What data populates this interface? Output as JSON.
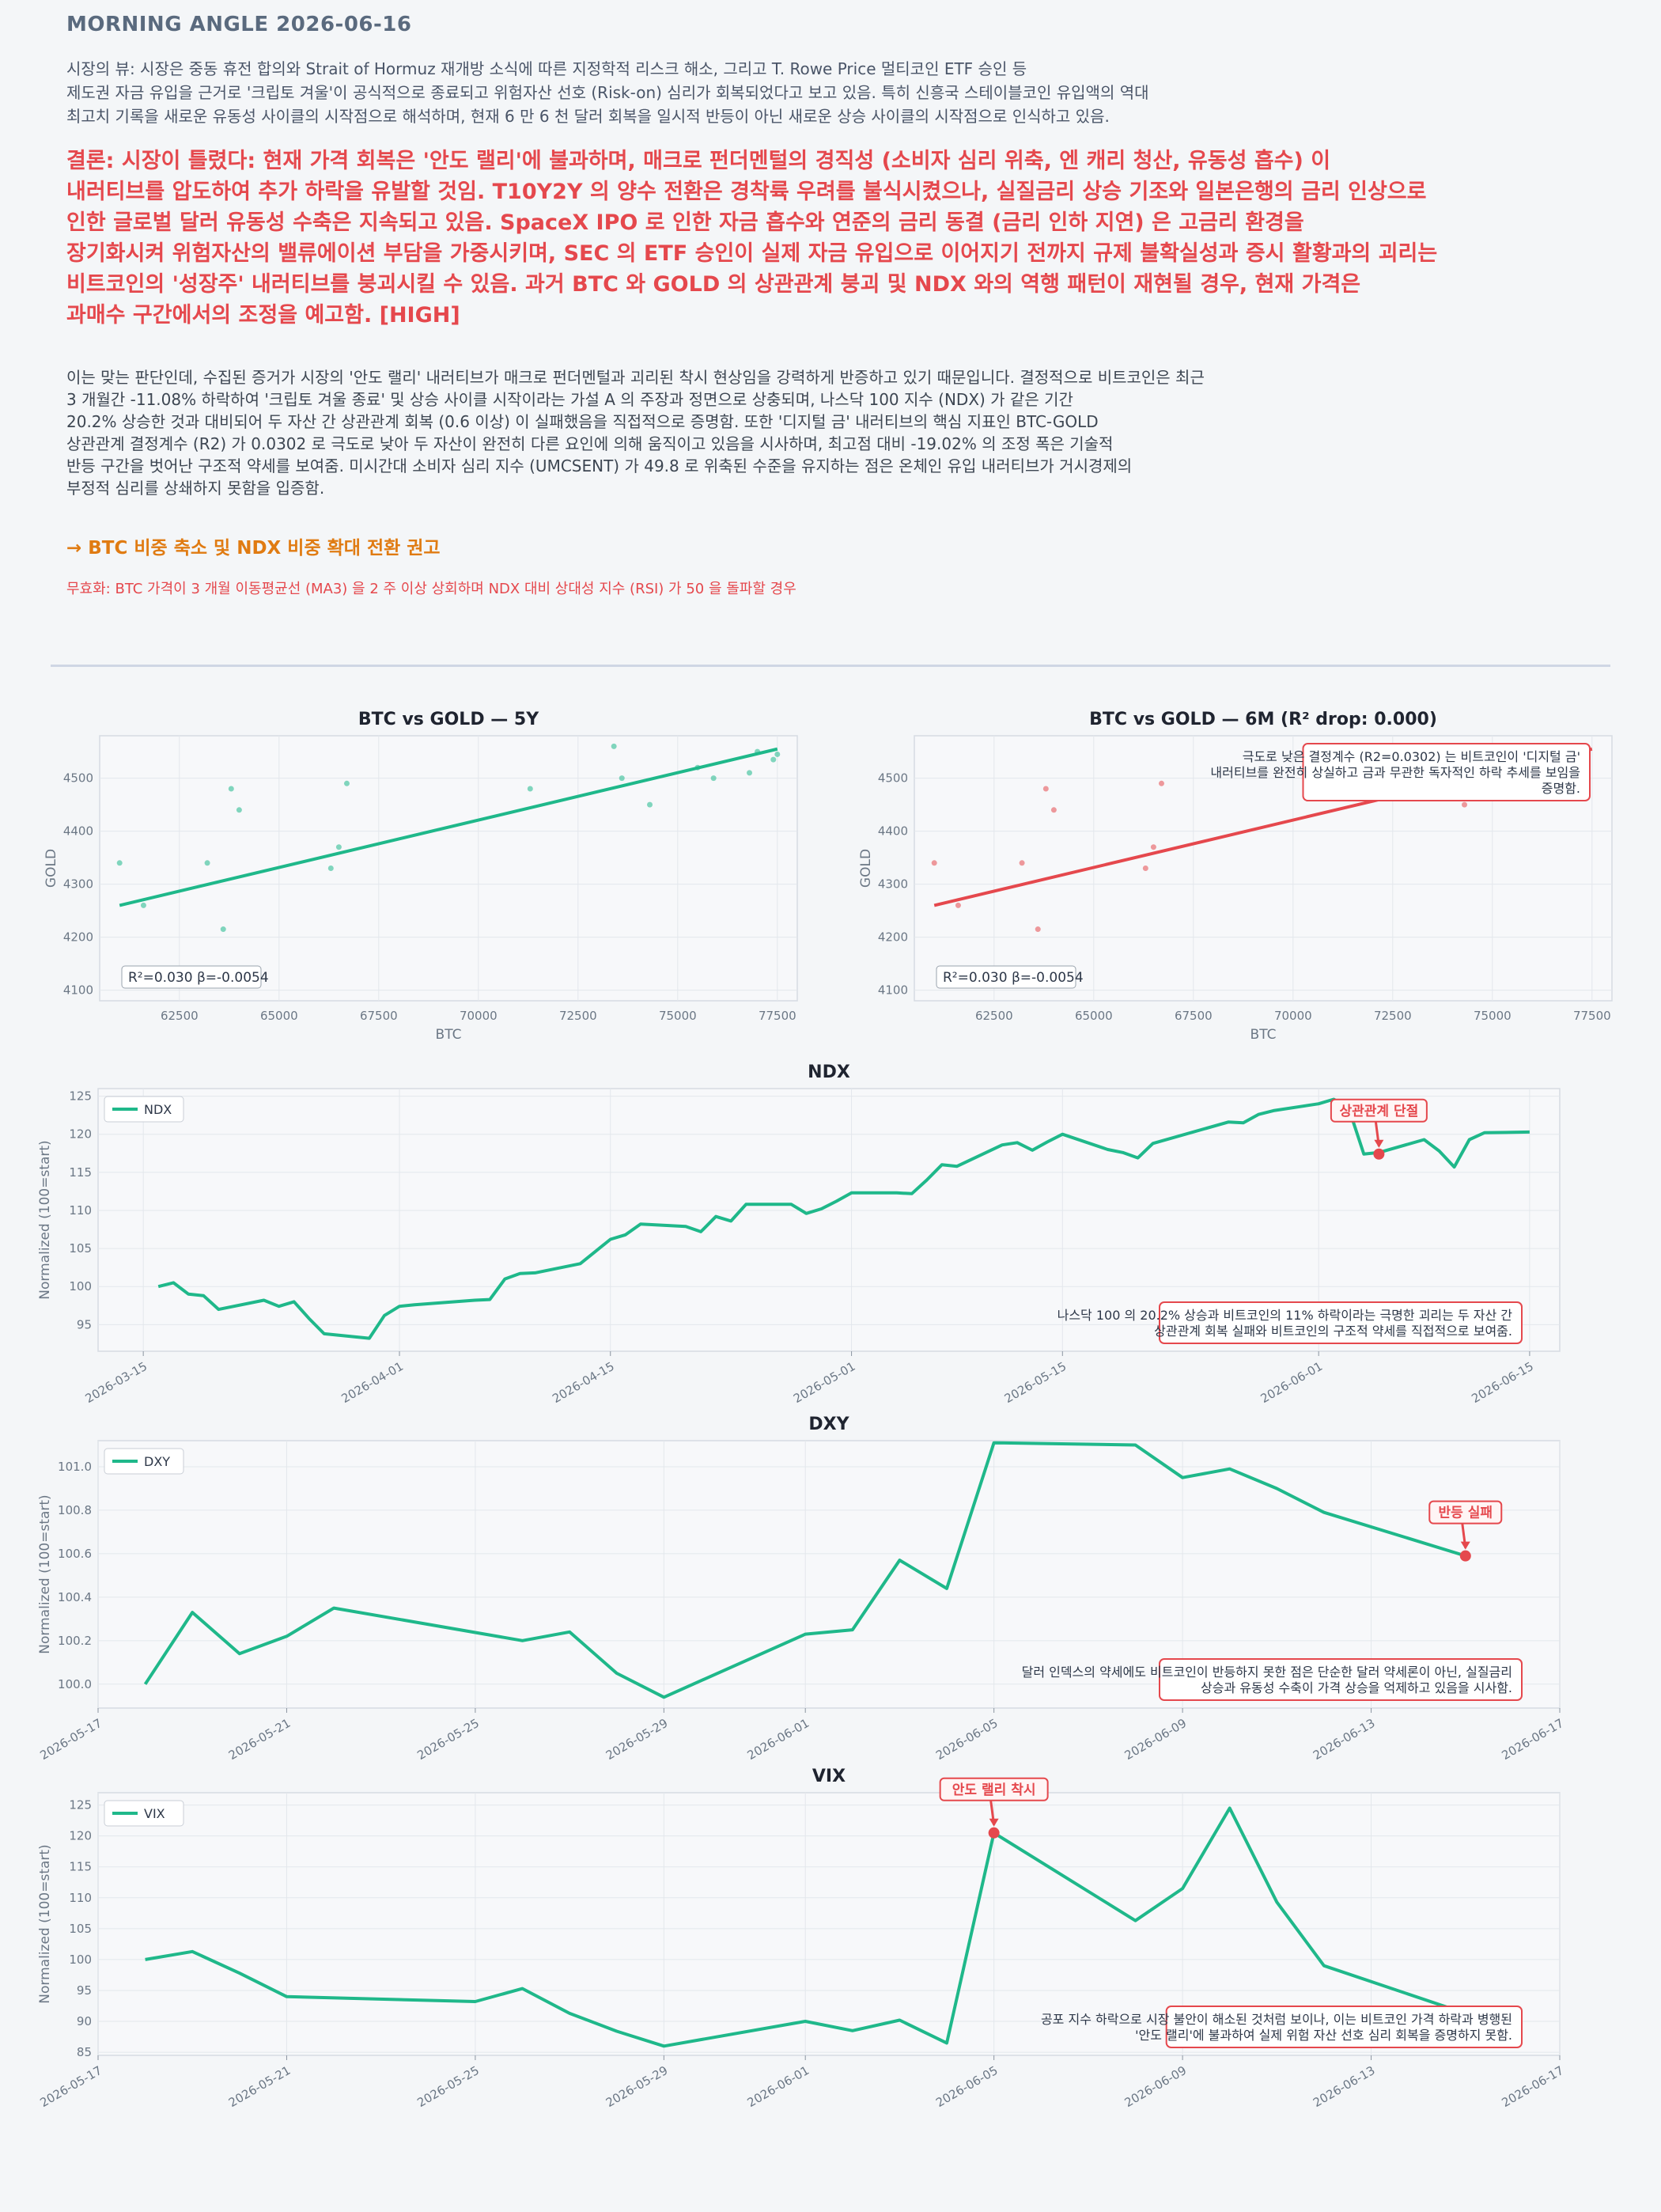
{
  "header": "MORNING ANGLE  2026-06-16",
  "market_view": [
    "시장의 뷰: 시장은 중동 휴전 합의와 Strait of Hormuz 재개방 소식에 따른 지정학적 리스크 해소, 그리고 T. Rowe Price 멀티코인 ETF 승인 등",
    "제도권 자금 유입을 근거로 '크립토 겨울'이 공식적으로 종료되고 위험자산 선호 (Risk-on) 심리가 회복되었다고 보고 있음. 특히 신흥국 스테이블코인 유입액의 역대",
    "최고치 기록을 새로운 유동성 사이클의 시작점으로 해석하며, 현재 6 만 6 천 달러 회복을 일시적 반등이 아닌 새로운 상승 사이클의 시작점으로 인식하고 있음."
  ],
  "conclusion": [
    "결론: 시장이 틀렸다: 현재 가격 회복은 '안도 랠리'에 불과하며, 매크로 펀더멘털의 경직성 (소비자 심리 위축, 엔 캐리 청산, 유동성 흡수) 이",
    "내러티브를 압도하여 추가 하락을 유발할 것임. T10Y2Y 의 양수 전환은 경착륙 우려를 불식시켰으나, 실질금리 상승 기조와 일본은행의 금리 인상으로",
    "인한 글로벌 달러 유동성 수축은 지속되고 있음. SpaceX IPO 로 인한 자금 흡수와 연준의 금리 동결 (금리 인하 지연) 은 고금리 환경을",
    "장기화시켜 위험자산의 밸류에이션 부담을 가중시키며, SEC 의 ETF 승인이 실제 자금 유입으로 이어지기 전까지 규제 불확실성과 증시 활황과의 괴리는",
    "비트코인의 '성장주' 내러티브를 붕괴시킬 수 있음. 과거 BTC 와 GOLD 의 상관관계 붕괴 및 NDX 와의 역행 패턴이 재현될 경우, 현재 가격은",
    "과매수 구간에서의 조정을 예고함.  [HIGH]"
  ],
  "evidence": [
    "이는 맞는 판단인데, 수집된 증거가 시장의 '안도 랠리' 내러티브가 매크로 펀더멘털과 괴리된 착시 현상임을 강력하게 반증하고 있기 때문입니다. 결정적으로 비트코인은 최근",
    "3 개월간 -11.08% 하락하여 '크립토 겨울 종료' 및 상승 사이클 시작이라는 가설 A 의 주장과 정면으로 상충되며, 나스닥 100 지수 (NDX) 가 같은 기간",
    "20.2% 상승한 것과 대비되어 두 자산 간 상관관계 회복 (0.6 이상) 이 실패했음을 직접적으로 증명함. 또한 '디지털 금' 내러티브의 핵심 지표인 BTC-GOLD",
    "상관관계 결정계수 (R2) 가 0.0302 로 극도로 낮아 두 자산이 완전히 다른 요인에 의해 움직이고 있음을 시사하며, 최고점 대비 -19.02% 의 조정 폭은 기술적",
    "반등 구간을 벗어난 구조적 약세를 보여줌. 미시간대 소비자 심리 지수 (UMCSENT) 가 49.8 로 위축된 수준을 유지하는 점은 온체인 유입 내러티브가 거시경제의",
    "부정적 심리를 상쇄하지 못함을 입증함."
  ],
  "action": "→ BTC 비중 축소 및 NDX 비중 확대 전환 권고",
  "invalidation": "무효화: BTC 가격이 3 개월 이동평균선 (MA3) 을 2 주 이상 상회하며 NDX 대비 상대성 지수 (RSI) 가 50 을 돌파할 경우",
  "colors": {
    "series": "#1fb88a",
    "accent": "#e5484d",
    "action": "#e07b12"
  },
  "scatter_points": [
    [
      61000,
      4340
    ],
    [
      61600,
      4260
    ],
    [
      63200,
      4340
    ],
    [
      63600,
      4215
    ],
    [
      63800,
      4480
    ],
    [
      64000,
      4440
    ],
    [
      66300,
      4330
    ],
    [
      66500,
      4370
    ],
    [
      66700,
      4490
    ],
    [
      71300,
      4480
    ],
    [
      73400,
      4560
    ],
    [
      73600,
      4500
    ],
    [
      74300,
      4450
    ],
    [
      75500,
      4520
    ],
    [
      75900,
      4500
    ],
    [
      76800,
      4510
    ],
    [
      77000,
      4550
    ],
    [
      77400,
      4535
    ],
    [
      77500,
      4545
    ]
  ],
  "scatter_points_6m": [
    [
      61000,
      4340
    ],
    [
      61600,
      4260
    ],
    [
      63200,
      4340
    ],
    [
      63600,
      4215
    ],
    [
      63800,
      4480
    ],
    [
      64000,
      4440
    ],
    [
      66300,
      4330
    ],
    [
      66500,
      4370
    ],
    [
      66700,
      4490
    ],
    [
      74300,
      4450
    ]
  ],
  "chart_data": [
    {
      "type": "scatter",
      "title": "BTC vs GOLD — 5Y",
      "xlabel": "BTC",
      "ylabel": "GOLD",
      "xlim": [
        60500,
        78000
      ],
      "ylim": [
        4080,
        4580
      ],
      "xticks": [
        "62500",
        "65000",
        "67500",
        "70000",
        "72500",
        "75000",
        "77500"
      ],
      "yticks": [
        "4100",
        "4200",
        "4300",
        "4400",
        "4500"
      ],
      "points_key": "scatter_points",
      "fit": [
        [
          61000,
          4260
        ],
        [
          77500,
          4555
        ]
      ],
      "stat": "R²=0.030  β=-0.0054"
    },
    {
      "type": "scatter",
      "title": "BTC vs GOLD — 6M (R² drop: 0.000)",
      "xlabel": "BTC",
      "ylabel": "GOLD",
      "xlim": [
        60500,
        78000
      ],
      "ylim": [
        4080,
        4580
      ],
      "xticks": [
        "62500",
        "65000",
        "67500",
        "70000",
        "72500",
        "75000",
        "77500"
      ],
      "yticks": [
        "4100",
        "4200",
        "4300",
        "4400",
        "4500"
      ],
      "points_key": "scatter_points_6m",
      "fit": [
        [
          61000,
          4260
        ],
        [
          77500,
          4555
        ]
      ],
      "stat": "R²=0.030  β=-0.0054",
      "note": [
        "극도로 낮은 결정계수 (R2=0.0302) 는 비트코인이 '디지털 금'",
        "내러티브를 완전히 상실하고 금과 무관한 독자적인 하락 추세를 보임을",
        "증명함."
      ]
    },
    {
      "type": "line",
      "title": "NDX",
      "series_name": "NDX",
      "ylabel": "Normalized (100=start)",
      "xlim": [
        "2026-03-12",
        "2026-06-17"
      ],
      "ylim": [
        91.5,
        126
      ],
      "yticks": [
        95,
        100,
        105,
        110,
        115,
        120,
        125
      ],
      "xticks": [
        "2026-03-15",
        "2026-04-01",
        "2026-04-15",
        "2026-05-01",
        "2026-05-15",
        "2026-06-01",
        "2026-06-15"
      ],
      "x": [
        "2026-03-16",
        "2026-03-17",
        "2026-03-18",
        "2026-03-19",
        "2026-03-20",
        "2026-03-23",
        "2026-03-24",
        "2026-03-25",
        "2026-03-26",
        "2026-03-27",
        "2026-03-30",
        "2026-03-31",
        "2026-04-01",
        "2026-04-02",
        "2026-04-06",
        "2026-04-07",
        "2026-04-08",
        "2026-04-09",
        "2026-04-10",
        "2026-04-13",
        "2026-04-14",
        "2026-04-15",
        "2026-04-16",
        "2026-04-17",
        "2026-04-20",
        "2026-04-21",
        "2026-04-22",
        "2026-04-23",
        "2026-04-24",
        "2026-04-27",
        "2026-04-28",
        "2026-04-29",
        "2026-04-30",
        "2026-05-01",
        "2026-05-04",
        "2026-05-05",
        "2026-05-06",
        "2026-05-07",
        "2026-05-08",
        "2026-05-11",
        "2026-05-12",
        "2026-05-13",
        "2026-05-14",
        "2026-05-15",
        "2026-05-18",
        "2026-05-19",
        "2026-05-20",
        "2026-05-21",
        "2026-05-26",
        "2026-05-27",
        "2026-05-28",
        "2026-05-29",
        "2026-06-01",
        "2026-06-02",
        "2026-06-03",
        "2026-06-04",
        "2026-06-05",
        "2026-06-08",
        "2026-06-09",
        "2026-06-10",
        "2026-06-11",
        "2026-06-12",
        "2026-06-15"
      ],
      "values": [
        100,
        100.5,
        99,
        98.8,
        97,
        98.2,
        97.4,
        98,
        95.8,
        93.8,
        93.2,
        96.2,
        97.4,
        97.6,
        98.2,
        98.3,
        101,
        101.7,
        101.8,
        103,
        104.6,
        106.2,
        106.8,
        108.2,
        107.9,
        107.2,
        109.2,
        108.6,
        110.8,
        110.8,
        109.6,
        110.2,
        111.2,
        112.3,
        112.3,
        112.2,
        114,
        116,
        115.8,
        118.6,
        118.9,
        117.9,
        119,
        120,
        118,
        117.6,
        116.9,
        118.8,
        121.6,
        121.5,
        122.6,
        123.1,
        124,
        124.6,
        123.4,
        117.4,
        117.6,
        119.3,
        117.8,
        115.7,
        119.3,
        120.2,
        120.3
      ],
      "callout": {
        "label": "상관관계 단절",
        "x": "2026-06-05",
        "y": 117.4
      },
      "note": [
        "나스닥 100 의 20.2% 상승과 비트코인의 11% 하락이라는 극명한 괴리는 두 자산 간",
        "상관관계 회복 실패와 비트코인의 구조적 약세를 직접적으로 보여줌."
      ]
    },
    {
      "type": "line",
      "title": "DXY",
      "series_name": "DXY",
      "ylabel": "Normalized (100=start)",
      "xlim": [
        "2026-05-17",
        "2026-06-17"
      ],
      "ylim": [
        99.89,
        101.12
      ],
      "yticks": [
        100.0,
        100.2,
        100.4,
        100.6,
        100.8,
        101.0
      ],
      "xticks": [
        "2026-05-17",
        "2026-05-21",
        "2026-05-25",
        "2026-05-29",
        "2026-06-01",
        "2026-06-05",
        "2026-06-09",
        "2026-06-13",
        "2026-06-17"
      ],
      "x": [
        "2026-05-18",
        "2026-05-19",
        "2026-05-20",
        "2026-05-21",
        "2026-05-22",
        "2026-05-26",
        "2026-05-27",
        "2026-05-28",
        "2026-05-29",
        "2026-06-01",
        "2026-06-02",
        "2026-06-03",
        "2026-06-04",
        "2026-06-05",
        "2026-06-08",
        "2026-06-09",
        "2026-06-10",
        "2026-06-11",
        "2026-06-12",
        "2026-06-15"
      ],
      "values": [
        100.0,
        100.33,
        100.14,
        100.22,
        100.35,
        100.2,
        100.24,
        100.05,
        99.94,
        100.23,
        100.25,
        100.57,
        100.44,
        101.11,
        101.1,
        100.95,
        100.99,
        100.9,
        100.79,
        100.59
      ],
      "callout": {
        "label": "반등 실패",
        "x": "2026-06-15",
        "y": 100.59
      },
      "note": [
        "달러 인덱스의 약세에도 비트코인이 반등하지 못한 점은 단순한 달러 약세론이 아닌, 실질금리",
        "상승과 유동성 수축이 가격 상승을 억제하고 있음을 시사함."
      ]
    },
    {
      "type": "line",
      "title": "VIX",
      "series_name": "VIX",
      "ylabel": "Normalized (100=start)",
      "xlim": [
        "2026-05-17",
        "2026-06-17"
      ],
      "ylim": [
        84.5,
        127
      ],
      "yticks": [
        85,
        90,
        95,
        100,
        105,
        110,
        115,
        120,
        125
      ],
      "xticks": [
        "2026-05-17",
        "2026-05-21",
        "2026-05-25",
        "2026-05-29",
        "2026-06-01",
        "2026-06-05",
        "2026-06-09",
        "2026-06-13",
        "2026-06-17"
      ],
      "x": [
        "2026-05-18",
        "2026-05-19",
        "2026-05-20",
        "2026-05-21",
        "2026-05-25",
        "2026-05-26",
        "2026-05-27",
        "2026-05-28",
        "2026-05-29",
        "2026-06-01",
        "2026-06-02",
        "2026-06-03",
        "2026-06-04",
        "2026-06-05",
        "2026-06-08",
        "2026-06-09",
        "2026-06-10",
        "2026-06-11",
        "2026-06-12",
        "2026-06-15"
      ],
      "values": [
        100,
        101.3,
        97.8,
        94,
        93.2,
        95.3,
        91.3,
        88.4,
        86,
        90,
        88.5,
        90.2,
        86.5,
        120.5,
        106.3,
        111.5,
        124.5,
        109.3,
        99,
        91.3
      ],
      "callout": {
        "label": "안도 랠리 착시",
        "x": "2026-06-05",
        "y": 120.5
      },
      "note": [
        "공포 지수 하락으로 시장 불안이 해소된 것처럼 보이나, 이는 비트코인 가격 하락과 병행된",
        "'안도 랠리'에 불과하여 실제 위험 자산 선호 심리 회복을 증명하지 못함."
      ]
    }
  ]
}
